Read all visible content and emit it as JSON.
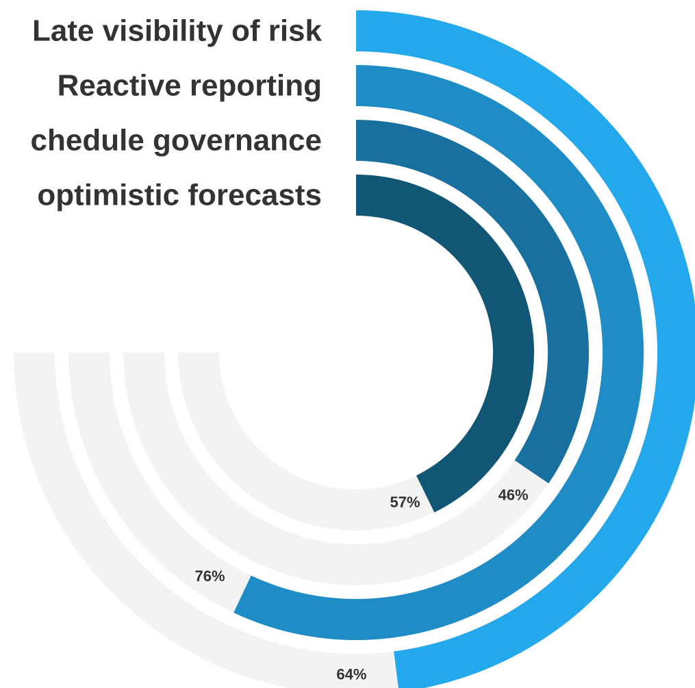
{
  "chart_data": {
    "type": "radial_bar",
    "max_value": 100,
    "track_color": "#f3f3f3",
    "series": [
      {
        "label": "Late visibility of risk",
        "value": 64,
        "value_label": "64%",
        "color": "#23a8eb"
      },
      {
        "label": "Reactive reporting",
        "value": 76,
        "value_label": "76%",
        "color": "#1e8cc5"
      },
      {
        "label": "chedule governance",
        "value": 46,
        "value_label": "46%",
        "color": "#17709e"
      },
      {
        "label": "optimistic forecasts",
        "value": 57,
        "value_label": "57%",
        "color": "#125675"
      }
    ]
  }
}
